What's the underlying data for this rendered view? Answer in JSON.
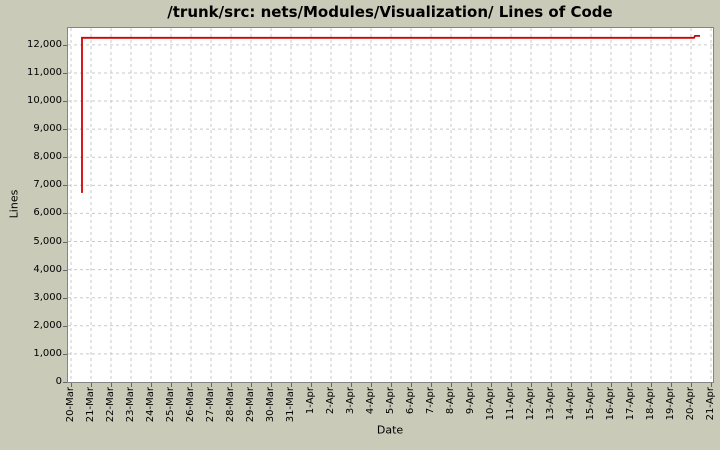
{
  "chart_data": {
    "type": "line",
    "title": "/trunk/src: nets/Modules/Visualization/ Lines of Code",
    "xlabel": "Date",
    "ylabel": "Lines",
    "x_ticks": [
      "20-Mar",
      "21-Mar",
      "22-Mar",
      "23-Mar",
      "24-Mar",
      "25-Mar",
      "26-Mar",
      "27-Mar",
      "28-Mar",
      "29-Mar",
      "30-Mar",
      "31-Mar",
      "1-Apr",
      "2-Apr",
      "3-Apr",
      "4-Apr",
      "5-Apr",
      "6-Apr",
      "7-Apr",
      "8-Apr",
      "9-Apr",
      "10-Apr",
      "11-Apr",
      "12-Apr",
      "13-Apr",
      "14-Apr",
      "15-Apr",
      "16-Apr",
      "17-Apr",
      "18-Apr",
      "19-Apr",
      "20-Apr",
      "21-Apr"
    ],
    "y_ticks": [
      {
        "value": 0,
        "label": "0"
      },
      {
        "value": 1000,
        "label": "1,000"
      },
      {
        "value": 2000,
        "label": "2,000"
      },
      {
        "value": 3000,
        "label": "3,000"
      },
      {
        "value": 4000,
        "label": "4,000"
      },
      {
        "value": 5000,
        "label": "5,000"
      },
      {
        "value": 6000,
        "label": "6,000"
      },
      {
        "value": 7000,
        "label": "7,000"
      },
      {
        "value": 8000,
        "label": "8,000"
      },
      {
        "value": 9000,
        "label": "9,000"
      },
      {
        "value": 10000,
        "label": "10,000"
      },
      {
        "value": 11000,
        "label": "11,000"
      },
      {
        "value": 12000,
        "label": "12,000"
      }
    ],
    "ylim": [
      0,
      12600
    ],
    "grid": "dashed",
    "legend": "none",
    "colors": {
      "line": "#d40000",
      "background": "#cacab8",
      "plot_background": "#ffffff",
      "gridline": "#c9c9c9",
      "plot_border": "#848484",
      "text": "#000000"
    },
    "series": [
      {
        "name": "Lines of Code",
        "points": [
          {
            "date": "20-Mar",
            "frac": 0.55,
            "value": 6730
          },
          {
            "date": "20-Mar",
            "frac": 0.55,
            "value": 12250
          },
          {
            "date": "20-Apr",
            "frac": 0.15,
            "value": 12250
          },
          {
            "date": "20-Apr",
            "frac": 0.2,
            "value": 12320
          },
          {
            "date": "20-Apr",
            "frac": 0.45,
            "value": 12320
          }
        ]
      }
    ]
  }
}
